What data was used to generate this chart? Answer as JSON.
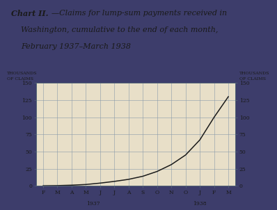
{
  "title_bold": "Chart II.",
  "title_italic_1": "—Claims for lump-sum payments received in",
  "title_italic_2": "Washington, cumulative to the end of each month,",
  "title_italic_3": "February 1937–March 1938",
  "ylabel_left": [
    "THOUSANDS",
    "OF CLAIMS"
  ],
  "ylabel_right": [
    "THOUSANDS",
    "OF CLAIMS"
  ],
  "x_labels": [
    "F",
    "M",
    "A",
    "M",
    "J",
    "J",
    "A",
    "S",
    "O",
    "N",
    "O",
    "J",
    "F",
    "M"
  ],
  "yticks": [
    0,
    25,
    50,
    75,
    100,
    125,
    150
  ],
  "ylim": [
    0,
    150
  ],
  "data_x": [
    0,
    1,
    2,
    3,
    4,
    5,
    6,
    7,
    8,
    9,
    10,
    11,
    12,
    13
  ],
  "data_y": [
    0.2,
    0.4,
    1.0,
    2.0,
    4.0,
    6.5,
    9.5,
    14.0,
    21.0,
    31.0,
    45.0,
    67.0,
    100.0,
    130.0
  ],
  "line_color": "#1a1a1a",
  "bg_color": "#e8dfc8",
  "grid_color": "#8899aa",
  "text_color": "#1a1a1a",
  "outer_bg": "#3d3d6b",
  "spine_color": "#556677"
}
